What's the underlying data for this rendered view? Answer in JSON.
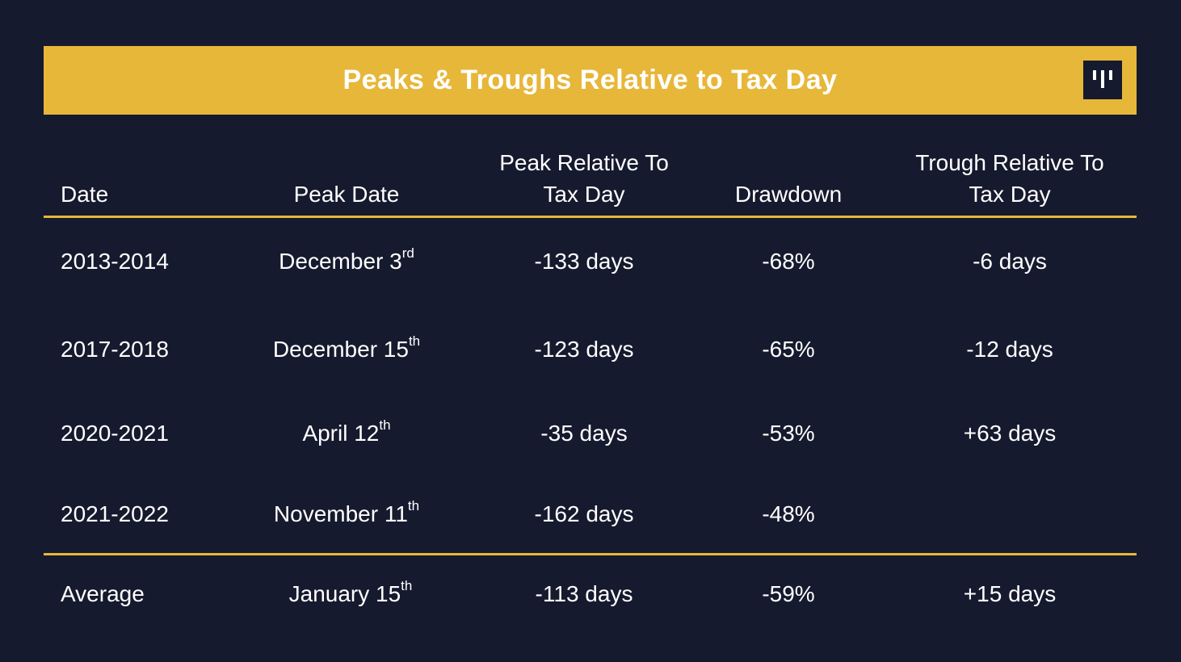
{
  "title": "Peaks & Troughs Relative to Tax Day",
  "logo_icon": "pantera-bars-icon",
  "colors": {
    "background": "#161a2e",
    "accent": "#e7b73a",
    "text": "#ffffff"
  },
  "headers": {
    "date": "Date",
    "peak_date": "Peak Date",
    "peak_relative_line1": "Peak Relative To",
    "peak_relative_line2": "Tax Day",
    "drawdown": "Drawdown",
    "trough_relative_line1": "Trough Relative To",
    "trough_relative_line2": "Tax Day"
  },
  "rows": [
    {
      "date": "2013-2014",
      "peak_date": "December 3",
      "peak_date_suffix": "rd",
      "peak_relative": "-133 days",
      "drawdown": "-68%",
      "trough_relative": "-6 days"
    },
    {
      "date": "2017-2018",
      "peak_date": "December 15",
      "peak_date_suffix": "th",
      "peak_relative": "-123 days",
      "drawdown": "-65%",
      "trough_relative": "-12 days"
    },
    {
      "date": "2020-2021",
      "peak_date": "April 12",
      "peak_date_suffix": "th",
      "peak_relative": "-35 days",
      "drawdown": "-53%",
      "trough_relative": "+63 days"
    },
    {
      "date": "2021-2022",
      "peak_date": "November 11",
      "peak_date_suffix": "th",
      "peak_relative": "-162 days",
      "drawdown": "-48%",
      "trough_relative": ""
    }
  ],
  "average": {
    "date": "Average",
    "peak_date": "January 15",
    "peak_date_suffix": "th",
    "peak_relative": "-113 days",
    "drawdown": "-59%",
    "trough_relative": "+15 days"
  }
}
